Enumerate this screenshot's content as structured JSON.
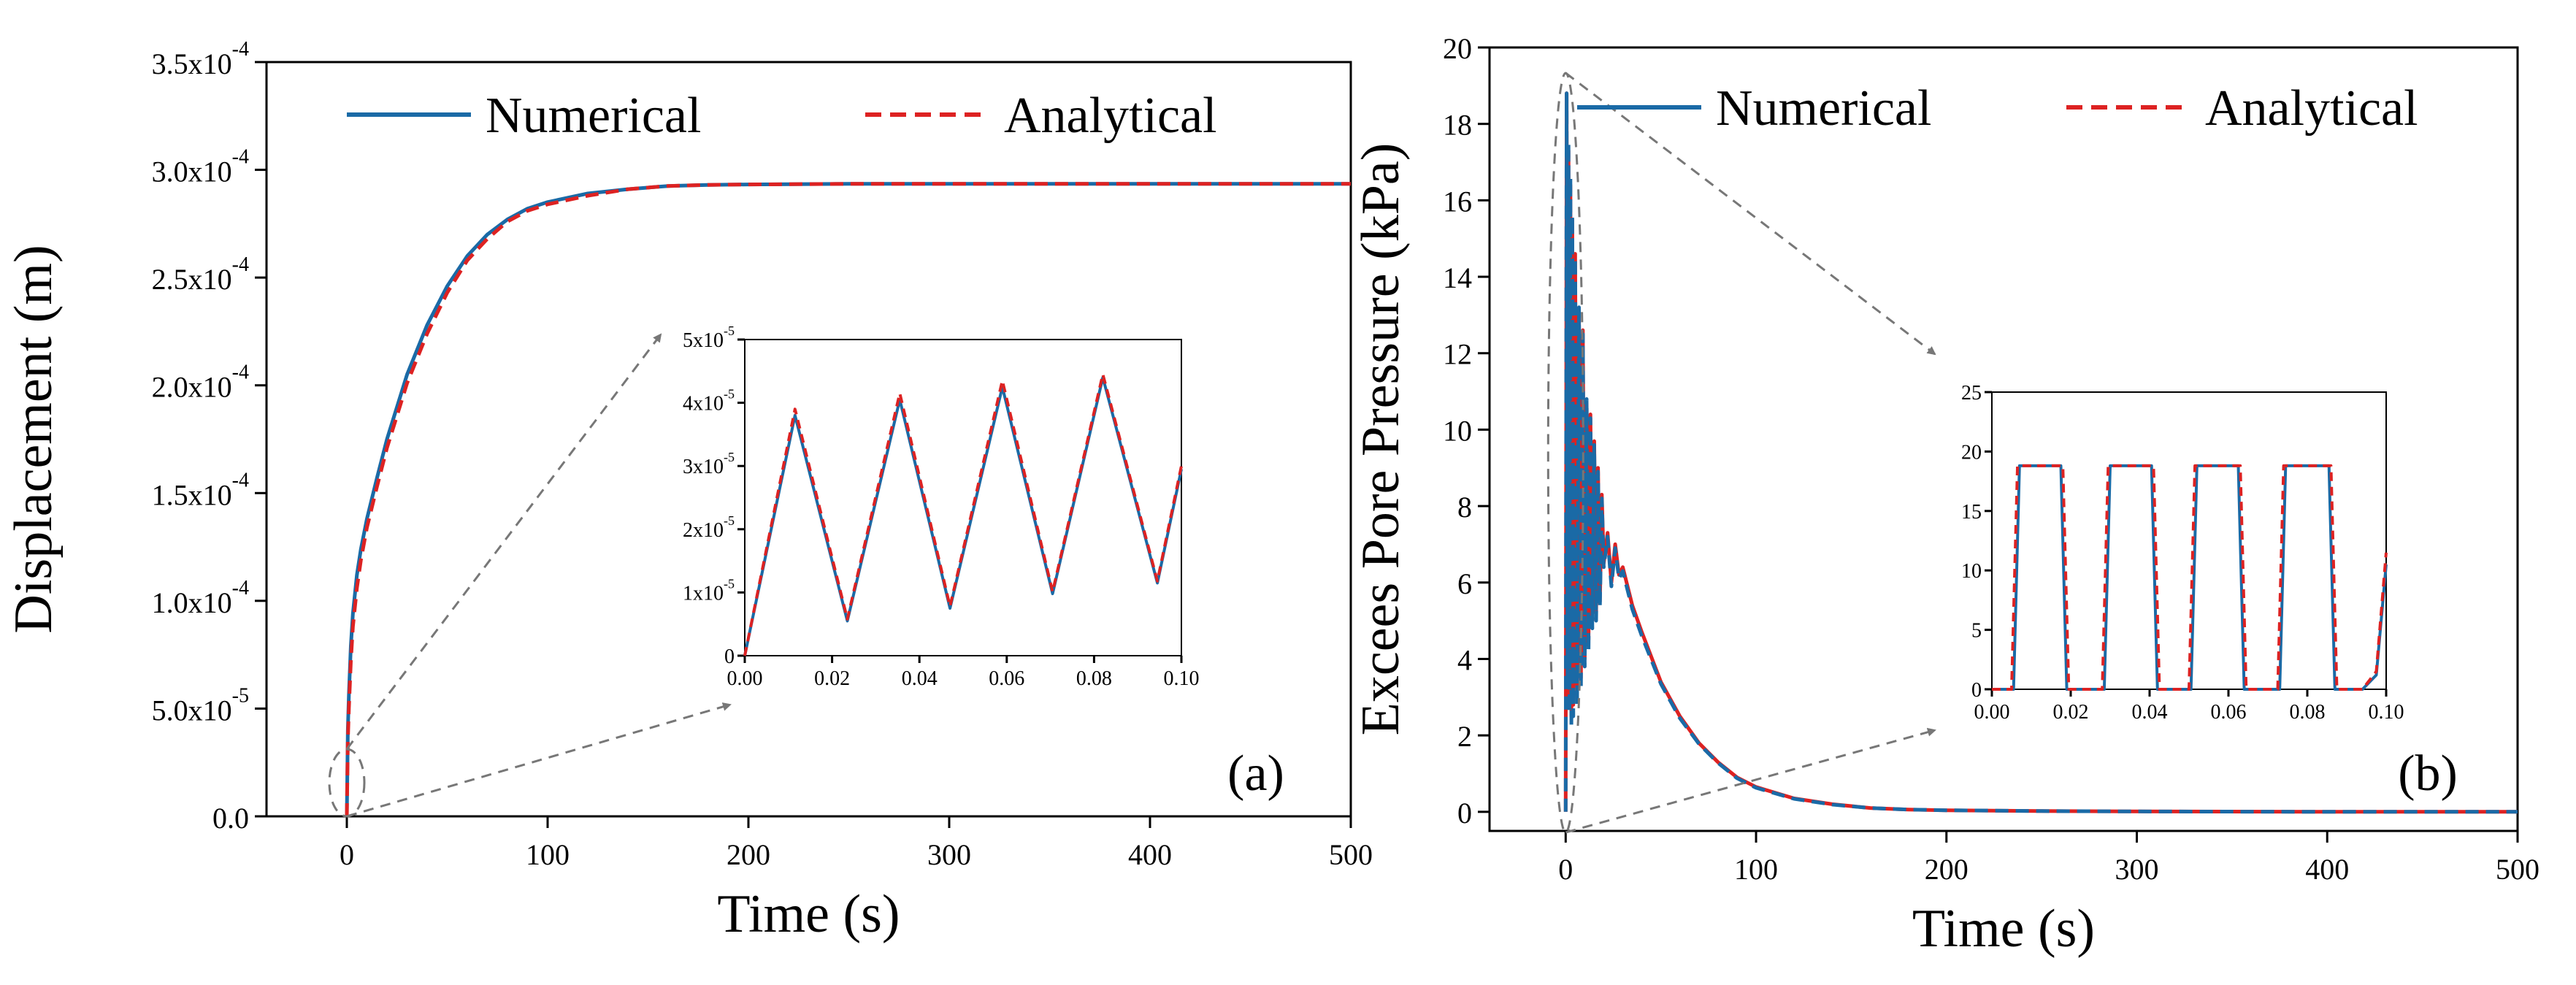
{
  "colors": {
    "numerical": "#1a6aa6",
    "analytical": "#dd2222",
    "guide": "#777777"
  },
  "legend": {
    "numerical": "Numerical",
    "analytical": "Analytical"
  },
  "chart_data": [
    {
      "type": "line",
      "panel_label": "(a)",
      "xlabel": "Time (s)",
      "ylabel": "Displacement (m)",
      "xlim": [
        -40,
        500
      ],
      "ylim": [
        0,
        0.00035
      ],
      "xticks": [
        0,
        100,
        200,
        300,
        400,
        500
      ],
      "xtick_labels": [
        "0",
        "100",
        "200",
        "300",
        "400",
        "500"
      ],
      "yticks": [
        0,
        5e-05,
        0.0001,
        0.00015,
        0.0002,
        0.00025,
        0.0003,
        0.00035
      ],
      "ytick_labels": [
        {
          "m": "0.0",
          "e": ""
        },
        {
          "m": "5.0x10",
          "e": "-5"
        },
        {
          "m": "1.0x10",
          "e": "-4"
        },
        {
          "m": "1.5x10",
          "e": "-4"
        },
        {
          "m": "2.0x10",
          "e": "-4"
        },
        {
          "m": "2.5x10",
          "e": "-4"
        },
        {
          "m": "3.0x10",
          "e": "-4"
        },
        {
          "m": "3.5x10",
          "e": "-4"
        }
      ],
      "series": [
        {
          "name": "Numerical",
          "x": [
            0,
            0.5,
            1,
            2,
            3,
            5,
            7,
            10,
            15,
            20,
            30,
            40,
            50,
            60,
            70,
            80,
            90,
            100,
            120,
            140,
            160,
            180,
            200,
            250,
            300,
            400,
            500
          ],
          "y": [
            0,
            4e-05,
            5.6e-05,
            7.9e-05,
            9.4e-05,
            0.000112,
            0.000124,
            0.000138,
            0.000157,
            0.000175,
            0.000205,
            0.000228,
            0.000246,
            0.00026,
            0.00027,
            0.000277,
            0.000282,
            0.000285,
            0.000289,
            0.000291,
            0.0002925,
            0.000293,
            0.0002932,
            0.0002935,
            0.0002935,
            0.0002935,
            0.0002935
          ]
        },
        {
          "name": "Analytical",
          "x": [
            0,
            0.5,
            1,
            2,
            3,
            5,
            7,
            10,
            15,
            20,
            30,
            40,
            50,
            60,
            70,
            80,
            90,
            100,
            120,
            140,
            160,
            180,
            200,
            250,
            300,
            400,
            500
          ],
          "y": [
            0,
            3.5e-05,
            5e-05,
            7.2e-05,
            8.8e-05,
            0.000106,
            0.000119,
            0.000134,
            0.000153,
            0.000171,
            0.000201,
            0.000224,
            0.000243,
            0.000258,
            0.000268,
            0.000276,
            0.000281,
            0.000284,
            0.000288,
            0.000291,
            0.0002925,
            0.000293,
            0.0002932,
            0.0002935,
            0.0002935,
            0.0002935,
            0.0002935
          ]
        }
      ],
      "inset": {
        "xlim": [
          0,
          0.1
        ],
        "ylim": [
          0,
          5e-05
        ],
        "xticks": [
          0,
          0.02,
          0.04,
          0.06,
          0.08,
          0.1
        ],
        "xtick_labels": [
          "0.00",
          "0.02",
          "0.04",
          "0.06",
          "0.08",
          "0.10"
        ],
        "yticks": [
          0,
          1e-05,
          2e-05,
          3e-05,
          4e-05,
          5e-05
        ],
        "ytick_labels": [
          {
            "m": "0",
            "e": ""
          },
          {
            "m": "1x10",
            "e": "-5"
          },
          {
            "m": "2x10",
            "e": "-5"
          },
          {
            "m": "3x10",
            "e": "-5"
          },
          {
            "m": "4x10",
            "e": "-5"
          },
          {
            "m": "5x10",
            "e": "-5"
          }
        ],
        "series": [
          {
            "name": "Numerical",
            "x": [
              0,
              0.0115,
              0.0235,
              0.0355,
              0.047,
              0.059,
              0.0705,
              0.082,
              0.0945,
              0.1
            ],
            "y": [
              0,
              3.8e-05,
              5.5e-06,
              4.05e-05,
              7.5e-06,
              4.25e-05,
              9.8e-06,
              4.4e-05,
              1.15e-05,
              2.95e-05
            ]
          },
          {
            "name": "Analytical",
            "x": [
              0,
              0.0115,
              0.0235,
              0.0355,
              0.047,
              0.059,
              0.0705,
              0.082,
              0.0945,
              0.1
            ],
            "y": [
              0,
              3.9e-05,
              5.8e-06,
              4.15e-05,
              7.8e-06,
              4.35e-05,
              1.01e-05,
              4.45e-05,
              1.18e-05,
              3e-05
            ]
          }
        ]
      }
    },
    {
      "type": "line",
      "panel_label": "(b)",
      "xlabel": "Time (s)",
      "ylabel": "Excees Pore Pressure (kPa)",
      "xlim": [
        -40,
        500
      ],
      "ylim": [
        -0.5,
        20
      ],
      "xticks": [
        0,
        100,
        200,
        300,
        400,
        500
      ],
      "xtick_labels": [
        "0",
        "100",
        "200",
        "300",
        "400",
        "500"
      ],
      "yticks": [
        0,
        2,
        4,
        6,
        8,
        10,
        12,
        14,
        16,
        18,
        20
      ],
      "ytick_labels": [
        "0",
        "2",
        "4",
        "6",
        "8",
        "10",
        "12",
        "14",
        "16",
        "18",
        "20"
      ],
      "series": [
        {
          "name": "Numerical",
          "x": [
            0,
            0.5,
            1,
            1.5,
            2,
            2.5,
            3,
            3.5,
            4,
            5,
            6,
            7,
            8,
            9,
            10,
            11,
            12,
            13,
            14,
            15,
            16,
            17,
            18,
            19,
            20,
            22,
            24,
            26,
            28,
            30,
            35,
            40,
            50,
            60,
            70,
            80,
            90,
            100,
            120,
            140,
            160,
            180,
            200,
            250,
            300,
            400,
            500
          ],
          "y": [
            0,
            18.8,
            4,
            17.3,
            3,
            16.4,
            2.5,
            15.5,
            2.8,
            14.6,
            3,
            13.1,
            3.5,
            12.6,
            4,
            10.7,
            4.5,
            10.4,
            5,
            9.7,
            5.2,
            9,
            5.5,
            8.3,
            6.5,
            7.3,
            6,
            7,
            6.2,
            6.4,
            5.4,
            4.7,
            3.4,
            2.5,
            1.8,
            1.3,
            0.9,
            0.65,
            0.35,
            0.2,
            0.1,
            0.06,
            0.04,
            0.02,
            0.01,
            0,
            0
          ]
        },
        {
          "name": "Analytical",
          "x": [
            0,
            0.5,
            1,
            1.5,
            2,
            2.5,
            3,
            3.5,
            4,
            5,
            6,
            7,
            8,
            9,
            10,
            11,
            12,
            13,
            14,
            15,
            16,
            17,
            18,
            19,
            20,
            22,
            24,
            26,
            28,
            30,
            35,
            40,
            50,
            60,
            70,
            80,
            90,
            100,
            120,
            140,
            160,
            180,
            200,
            250,
            300,
            400,
            500
          ],
          "y": [
            0,
            18.8,
            3.5,
            17.5,
            2.6,
            16.6,
            2.2,
            15.6,
            2.5,
            14.5,
            2.8,
            13.2,
            3.2,
            12.5,
            3.8,
            10.8,
            4.2,
            10.3,
            4.8,
            9.6,
            5,
            8.9,
            5.4,
            8.2,
            6.4,
            7.2,
            5.9,
            6.9,
            6.1,
            6.3,
            5.3,
            4.6,
            3.35,
            2.45,
            1.78,
            1.28,
            0.88,
            0.63,
            0.34,
            0.19,
            0.1,
            0.06,
            0.04,
            0.02,
            0.01,
            0,
            0
          ]
        }
      ],
      "inset": {
        "xlim": [
          0,
          0.1
        ],
        "ylim": [
          0,
          25
        ],
        "xticks": [
          0,
          0.02,
          0.04,
          0.06,
          0.08,
          0.1
        ],
        "xtick_labels": [
          "0.00",
          "0.02",
          "0.04",
          "0.06",
          "0.08",
          "0.10"
        ],
        "yticks": [
          0,
          5,
          10,
          15,
          20,
          25
        ],
        "ytick_labels": [
          "0",
          "5",
          "10",
          "15",
          "20",
          "25"
        ],
        "series": [
          {
            "name": "Numerical",
            "x": [
              0,
              0.0055,
              0.007,
              0.0175,
              0.019,
              0.0205,
              0.0285,
              0.03,
              0.0405,
              0.042,
              0.0505,
              0.052,
              0.0625,
              0.064,
              0.073,
              0.0745,
              0.0855,
              0.087,
              0.094,
              0.0975,
              0.1
            ],
            "y": [
              0,
              0,
              18.8,
              18.8,
              0,
              0,
              0,
              18.8,
              18.8,
              0,
              0,
              18.8,
              18.8,
              0,
              0,
              18.8,
              18.8,
              0,
              0,
              1.2,
              10.5
            ]
          },
          {
            "name": "Analytical",
            "x": [
              0,
              0.005,
              0.0065,
              0.018,
              0.0195,
              0.021,
              0.028,
              0.0295,
              0.041,
              0.0425,
              0.05,
              0.0515,
              0.063,
              0.0645,
              0.0725,
              0.074,
              0.086,
              0.0875,
              0.094,
              0.0975,
              0.1
            ],
            "y": [
              0,
              0,
              18.8,
              18.8,
              0,
              0,
              0,
              18.8,
              18.8,
              0,
              0,
              18.8,
              18.8,
              0,
              0,
              18.8,
              18.8,
              0,
              0,
              1.5,
              11.5
            ]
          }
        ]
      }
    }
  ]
}
